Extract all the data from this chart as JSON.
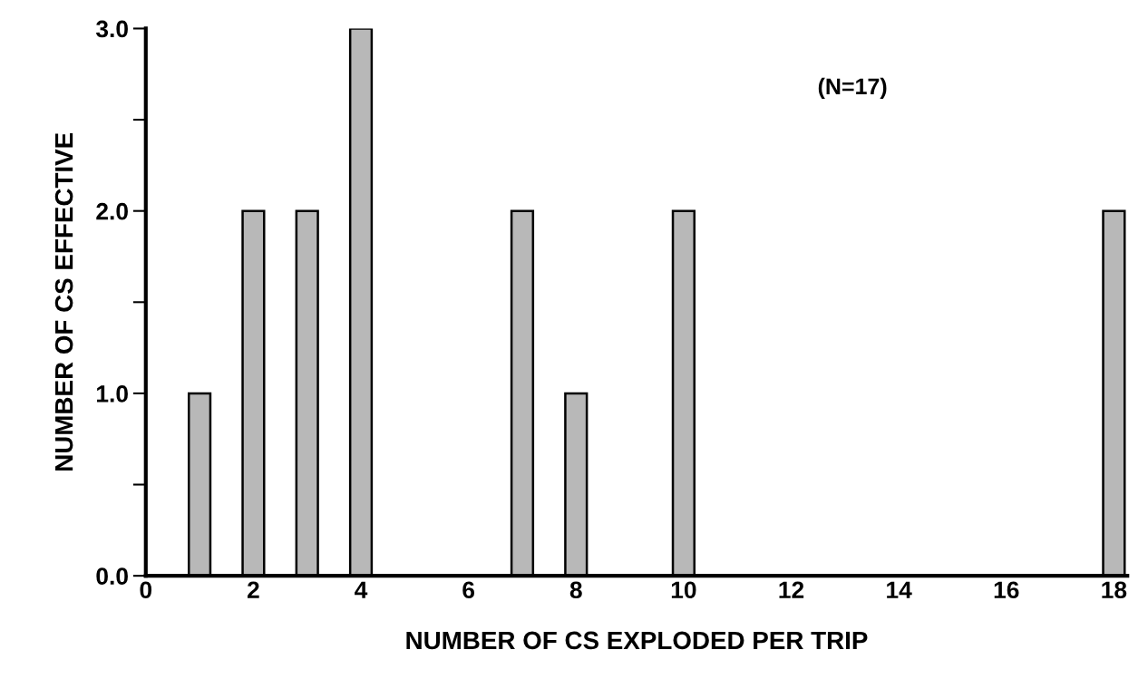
{
  "chart_data": {
    "type": "bar",
    "xlabel": "NUMBER OF CS EXPLODED PER TRIP",
    "ylabel": "NUMBER OF CS EFFECTIVE",
    "x": [
      1,
      2,
      3,
      4,
      7,
      8,
      10,
      18
    ],
    "values": [
      1,
      2,
      2,
      3,
      2,
      1,
      2,
      2
    ],
    "color": "#b8b8b8",
    "xlim": [
      0,
      18.25
    ],
    "xticks": [
      0,
      2,
      4,
      6,
      8,
      10,
      12,
      14,
      16,
      18
    ],
    "ylim": [
      0,
      3
    ],
    "yticks": [
      {
        "value": 0,
        "label": "0.0"
      },
      {
        "value": 0.5,
        "label": null
      },
      {
        "value": 1,
        "label": "1.0"
      },
      {
        "value": 1.5,
        "label": null
      },
      {
        "value": 2,
        "label": "2.0"
      },
      {
        "value": 2.5,
        "label": null
      },
      {
        "value": 3,
        "label": "3.0"
      }
    ],
    "annotations": [
      "(N=17)"
    ],
    "grid": false
  }
}
